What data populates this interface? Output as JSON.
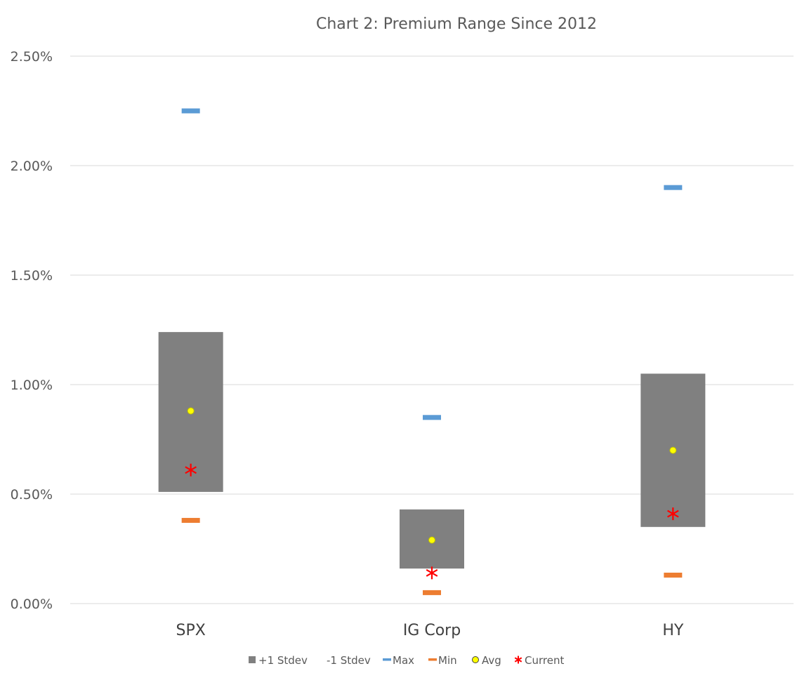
{
  "chart_data": {
    "type": "floating-bar",
    "title": "Chart 2: Premium Range Since 2012",
    "xlabel": "",
    "ylabel": "",
    "ylim": [
      0,
      0.025
    ],
    "y_ticks": [
      0,
      0.005,
      0.01,
      0.015,
      0.02,
      0.025
    ],
    "y_tick_labels": [
      "0.00%",
      "0.50%",
      "1.00%",
      "1.50%",
      "2.00%",
      "2.50%"
    ],
    "grid": true,
    "legend_position": "bottom",
    "categories": [
      "SPX",
      "IG Corp",
      "HY"
    ],
    "series": [
      {
        "name": "+1 Stdev",
        "kind": "range-box",
        "values": [
          0.0124,
          0.0043,
          0.0105
        ]
      },
      {
        "name": "-1 Stdev",
        "kind": "range-box-base",
        "values": [
          0.0051,
          0.0016,
          0.0035
        ]
      },
      {
        "name": "Max",
        "kind": "dash",
        "values": [
          0.0225,
          0.0085,
          0.019
        ]
      },
      {
        "name": "Min",
        "kind": "dash",
        "values": [
          0.0038,
          0.0005,
          0.0013
        ]
      },
      {
        "name": "Avg",
        "kind": "dot",
        "values": [
          0.0088,
          0.0029,
          0.007
        ]
      },
      {
        "name": "Current",
        "kind": "star",
        "values": [
          0.0061,
          0.0014,
          0.0041
        ]
      }
    ],
    "colors": {
      "stdev_box": "#808080",
      "max": "#5B9BD5",
      "min": "#ED7D31",
      "avg_fill": "#FFFF00",
      "avg_stroke": "#BFBF00",
      "current": "#FF0000",
      "grid": "#D9D9D9",
      "text": "#595959"
    }
  }
}
